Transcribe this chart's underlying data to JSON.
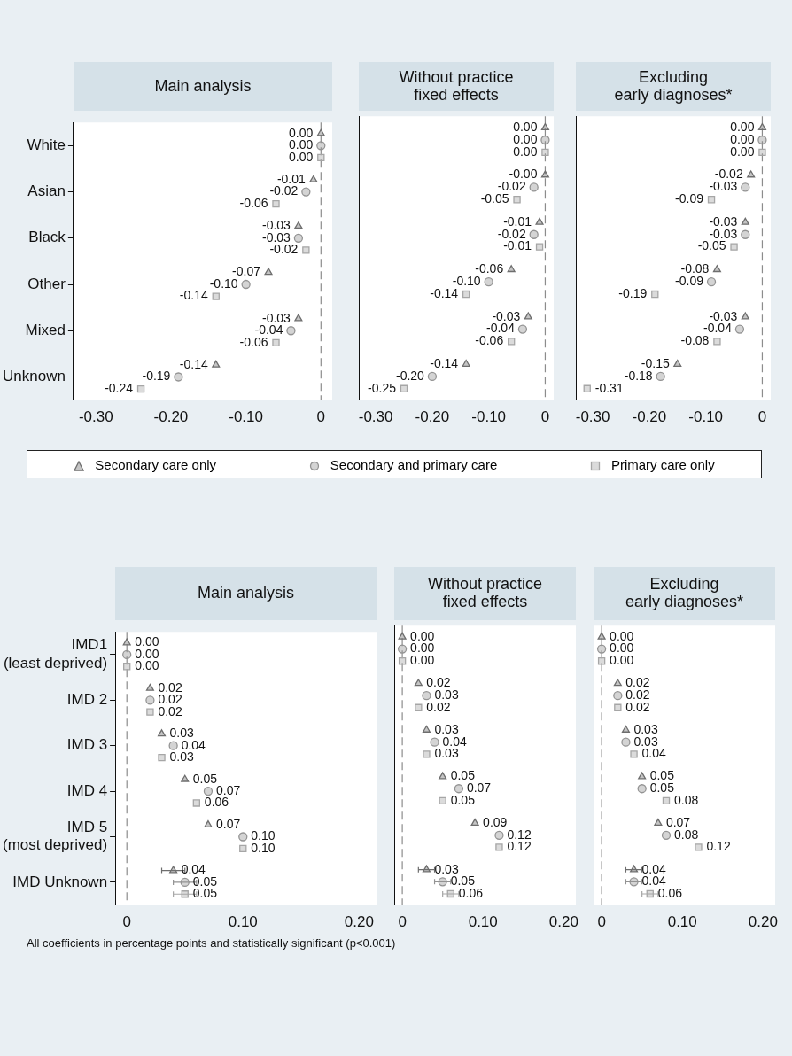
{
  "chart_data": [
    {
      "type": "scatter",
      "orientation": "horizontal",
      "title": "Main analysis",
      "categories": [
        "White",
        "Asian",
        "Black",
        "Other",
        "Mixed",
        "Unknown"
      ],
      "xlim": [
        -0.33,
        0.015
      ],
      "xticks": [
        {
          "value": -0.3,
          "label": "-0.30"
        },
        {
          "value": -0.2,
          "label": "-0.20"
        },
        {
          "value": -0.1,
          "label": "-0.10"
        },
        {
          "value": 0,
          "label": "0"
        }
      ],
      "ref_lines": [
        {
          "axis": "x",
          "value": 0,
          "color": "#8c8c8c",
          "line_style": "dashed"
        }
      ],
      "legend": "bottom",
      "tick_labels": "xy",
      "series": [
        {
          "name": "Secondary care only",
          "color": "#6e6e6e",
          "marker": "triangle",
          "values": [
            0,
            -0.01,
            -0.03,
            -0.07,
            -0.03,
            -0.14
          ],
          "value_labels": [
            "0.00",
            "-0.01",
            "-0.03",
            "-0.07",
            "-0.03",
            "-0.14"
          ]
        },
        {
          "name": "Secondary and primary care",
          "color": "#939393",
          "marker": "circle",
          "values": [
            0,
            -0.02,
            -0.03,
            -0.1,
            -0.04,
            -0.19
          ],
          "value_labels": [
            "0.00",
            "-0.02",
            "-0.03",
            "-0.10",
            "-0.04",
            "-0.19"
          ]
        },
        {
          "name": "Primary care only",
          "color": "#a6a6a6",
          "marker": "square",
          "values": [
            0,
            -0.06,
            -0.02,
            -0.14,
            -0.06,
            -0.24
          ],
          "value_labels": [
            "0.00",
            "-0.06",
            "-0.02",
            "-0.14",
            "-0.06",
            "-0.24"
          ]
        }
      ]
    },
    {
      "type": "scatter",
      "orientation": "horizontal",
      "title": "Without practice\nfixed effects",
      "categories": [
        null,
        null,
        null,
        null,
        null,
        null
      ],
      "xlim": [
        -0.33,
        0.015
      ],
      "xticks": [
        {
          "value": -0.3,
          "label": "-0.30"
        },
        {
          "value": -0.2,
          "label": "-0.20"
        },
        {
          "value": -0.1,
          "label": "-0.10"
        },
        {
          "value": 0,
          "label": "0"
        }
      ],
      "ref_lines": [
        {
          "axis": "x",
          "value": 0,
          "color": "#8c8c8c",
          "line_style": "dashed"
        }
      ],
      "tick_labels": "x",
      "series": [
        {
          "color": "#6e6e6e",
          "marker": "triangle",
          "values": [
            0,
            0,
            -0.01,
            -0.06,
            -0.03,
            -0.14
          ],
          "value_labels": [
            "0.00",
            "-0.00",
            "-0.01",
            "-0.06",
            "-0.03",
            "-0.14"
          ]
        },
        {
          "color": "#939393",
          "marker": "circle",
          "values": [
            0,
            -0.02,
            -0.02,
            -0.1,
            -0.04,
            -0.2
          ],
          "value_labels": [
            "0.00",
            "-0.02",
            "-0.02",
            "-0.10",
            "-0.04",
            "-0.20"
          ]
        },
        {
          "color": "#a6a6a6",
          "marker": "square",
          "values": [
            0,
            -0.05,
            -0.01,
            -0.14,
            -0.06,
            -0.25
          ],
          "value_labels": [
            "0.00",
            "-0.05",
            "-0.01",
            "-0.14",
            "-0.06",
            "-0.25"
          ]
        }
      ]
    },
    {
      "type": "scatter",
      "orientation": "horizontal",
      "title": "Excluding\nearly diagnoses*",
      "categories": [
        null,
        null,
        null,
        null,
        null,
        null
      ],
      "xlim": [
        -0.33,
        0.015
      ],
      "xticks": [
        {
          "value": -0.3,
          "label": "-0.30"
        },
        {
          "value": -0.2,
          "label": "-0.20"
        },
        {
          "value": -0.1,
          "label": "-0.10"
        },
        {
          "value": 0,
          "label": "0"
        }
      ],
      "ref_lines": [
        {
          "axis": "x",
          "value": 0,
          "color": "#8c8c8c",
          "line_style": "dashed"
        }
      ],
      "tick_labels": "x",
      "series": [
        {
          "color": "#6e6e6e",
          "marker": "triangle",
          "values": [
            0,
            -0.02,
            -0.03,
            -0.08,
            -0.03,
            -0.15
          ],
          "value_labels": [
            "0.00",
            "-0.02",
            "-0.03",
            "-0.08",
            "-0.03",
            "-0.15"
          ]
        },
        {
          "color": "#939393",
          "marker": "circle",
          "values": [
            0,
            -0.03,
            -0.03,
            -0.09,
            -0.04,
            -0.18
          ],
          "value_labels": [
            "0.00",
            "-0.03",
            "-0.03",
            "-0.09",
            "-0.04",
            "-0.18"
          ]
        },
        {
          "color": "#a6a6a6",
          "marker": "square",
          "values": [
            0,
            -0.09,
            -0.05,
            -0.19,
            -0.08,
            -0.31
          ],
          "value_labels": [
            "0.00",
            "-0.09",
            "-0.05",
            "-0.19",
            "-0.08",
            "-0.31"
          ]
        }
      ]
    },
    {
      "type": "scatter",
      "orientation": "horizontal",
      "title": "Main analysis",
      "categories": [
        "IMD1\n(least deprived)",
        "IMD 2",
        "IMD 3",
        "IMD 4",
        "IMD 5\n(most deprived)",
        "IMD Unknown"
      ],
      "xlim": [
        -0.01,
        0.215
      ],
      "xticks": [
        {
          "value": 0,
          "label": "0"
        },
        {
          "value": 0.1,
          "label": "0.10"
        },
        {
          "value": 0.2,
          "label": "0.20"
        }
      ],
      "ref_lines": [
        {
          "axis": "x",
          "value": 0,
          "color": "#8c8c8c",
          "line_style": "dashed"
        }
      ],
      "tick_labels": "xy",
      "annotations": [
        "All coefficients in percentage points and statistically significant (p<0.001)"
      ],
      "series": [
        {
          "color": "#6e6e6e",
          "marker": "triangle",
          "values": [
            0,
            0.02,
            0.03,
            0.05,
            0.07,
            0.04
          ],
          "value_labels": [
            "0.00",
            "0.02",
            "0.03",
            "0.05",
            "0.07",
            "0.04"
          ],
          "errors": [
            null,
            null,
            null,
            null,
            null,
            0.01
          ]
        },
        {
          "color": "#939393",
          "marker": "circle",
          "values": [
            0,
            0.02,
            0.04,
            0.07,
            0.1,
            0.05
          ],
          "value_labels": [
            "0.00",
            "0.02",
            "0.04",
            "0.07",
            "0.10",
            "0.05"
          ],
          "errors": [
            null,
            null,
            null,
            null,
            null,
            0.01
          ]
        },
        {
          "color": "#a6a6a6",
          "marker": "square",
          "values": [
            0,
            0.02,
            0.03,
            0.06,
            0.1,
            0.05
          ],
          "value_labels": [
            "0.00",
            "0.02",
            "0.03",
            "0.06",
            "0.10",
            "0.05"
          ],
          "errors": [
            null,
            null,
            null,
            null,
            null,
            0.01
          ]
        }
      ]
    },
    {
      "type": "scatter",
      "orientation": "horizontal",
      "title": "Without practice\nfixed effects",
      "categories": [
        null,
        null,
        null,
        null,
        null,
        null
      ],
      "xlim": [
        -0.01,
        0.215
      ],
      "xticks": [
        {
          "value": 0,
          "label": "0"
        },
        {
          "value": 0.1,
          "label": "0.10"
        },
        {
          "value": 0.2,
          "label": "0.20"
        }
      ],
      "ref_lines": [
        {
          "axis": "x",
          "value": 0,
          "color": "#8c8c8c",
          "line_style": "dashed"
        }
      ],
      "tick_labels": "x",
      "series": [
        {
          "color": "#6e6e6e",
          "marker": "triangle",
          "values": [
            0,
            0.02,
            0.03,
            0.05,
            0.09,
            0.03
          ],
          "value_labels": [
            "0.00",
            "0.02",
            "0.03",
            "0.05",
            "0.09",
            "0.03"
          ],
          "errors": [
            null,
            null,
            null,
            null,
            null,
            0.01
          ]
        },
        {
          "color": "#939393",
          "marker": "circle",
          "values": [
            0,
            0.03,
            0.04,
            0.07,
            0.12,
            0.05
          ],
          "value_labels": [
            "0.00",
            "0.03",
            "0.04",
            "0.07",
            "0.12",
            "0.05"
          ],
          "errors": [
            null,
            null,
            null,
            null,
            null,
            0.01
          ]
        },
        {
          "color": "#a6a6a6",
          "marker": "square",
          "values": [
            0,
            0.02,
            0.03,
            0.05,
            0.12,
            0.06
          ],
          "value_labels": [
            "0.00",
            "0.02",
            "0.03",
            "0.05",
            "0.12",
            "0.06"
          ],
          "errors": [
            null,
            null,
            null,
            null,
            null,
            0.01
          ]
        }
      ]
    },
    {
      "type": "scatter",
      "orientation": "horizontal",
      "title": "Excluding\nearly diagnoses*",
      "categories": [
        null,
        null,
        null,
        null,
        null,
        null
      ],
      "xlim": [
        -0.01,
        0.215
      ],
      "xticks": [
        {
          "value": 0,
          "label": "0"
        },
        {
          "value": 0.1,
          "label": "0.10"
        },
        {
          "value": 0.2,
          "label": "0.20"
        }
      ],
      "ref_lines": [
        {
          "axis": "x",
          "value": 0,
          "color": "#8c8c8c",
          "line_style": "dashed"
        }
      ],
      "tick_labels": "x",
      "series": [
        {
          "color": "#6e6e6e",
          "marker": "triangle",
          "values": [
            0,
            0.02,
            0.03,
            0.05,
            0.07,
            0.04
          ],
          "value_labels": [
            "0.00",
            "0.02",
            "0.03",
            "0.05",
            "0.07",
            "0.04"
          ],
          "errors": [
            null,
            null,
            null,
            null,
            null,
            0.01
          ]
        },
        {
          "color": "#939393",
          "marker": "circle",
          "values": [
            0,
            0.02,
            0.03,
            0.05,
            0.08,
            0.04
          ],
          "value_labels": [
            "0.00",
            "0.02",
            "0.03",
            "0.05",
            "0.08",
            "0.04"
          ],
          "errors": [
            null,
            null,
            null,
            null,
            null,
            0.01
          ]
        },
        {
          "color": "#a6a6a6",
          "marker": "square",
          "values": [
            0,
            0.02,
            0.04,
            0.08,
            0.12,
            0.06
          ],
          "value_labels": [
            "0.00",
            "0.02",
            "0.04",
            "0.08",
            "0.12",
            "0.06"
          ],
          "errors": [
            null,
            null,
            null,
            null,
            null,
            0.01
          ]
        }
      ]
    }
  ]
}
